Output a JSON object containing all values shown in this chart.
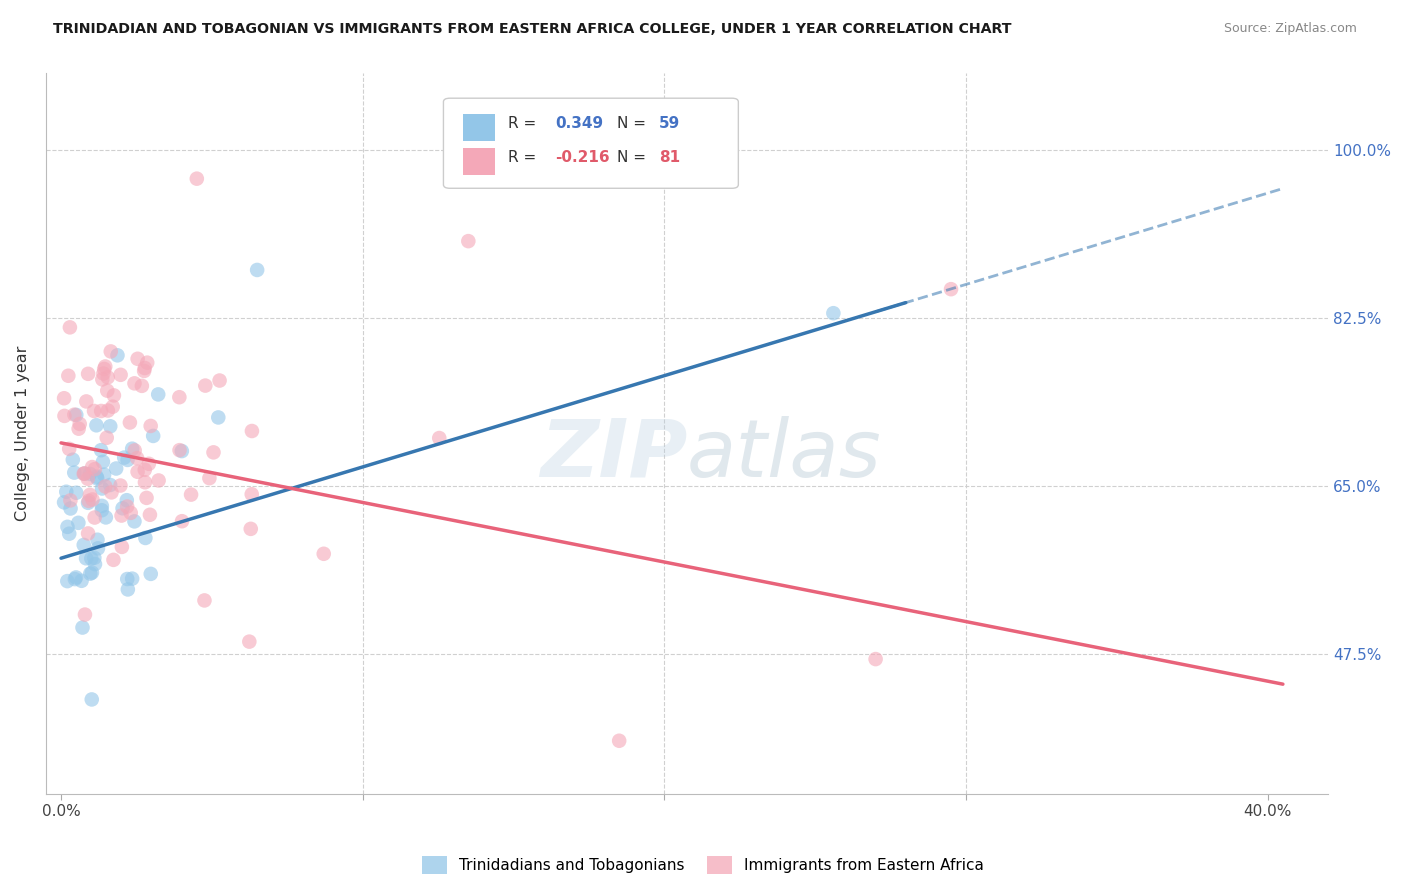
{
  "title": "TRINIDADIAN AND TOBAGONIAN VS IMMIGRANTS FROM EASTERN AFRICA COLLEGE, UNDER 1 YEAR CORRELATION CHART",
  "source": "Source: ZipAtlas.com",
  "ylabel": "College, Under 1 year",
  "ytick_vals": [
    0.475,
    0.65,
    0.825,
    1.0
  ],
  "ytick_labels": [
    "47.5%",
    "65.0%",
    "82.5%",
    "100.0%"
  ],
  "xlim": [
    -0.005,
    0.42
  ],
  "ylim": [
    0.33,
    1.08
  ],
  "R_blue": 0.349,
  "N_blue": 59,
  "R_pink": -0.216,
  "N_pink": 81,
  "blue_color": "#93c6e8",
  "pink_color": "#f4a8b8",
  "blue_line_color": "#3777b0",
  "pink_line_color": "#e8637a",
  "legend_label_blue": "Trinidadians and Tobagonians",
  "legend_label_pink": "Immigrants from Eastern Africa",
  "background_color": "#ffffff",
  "grid_color": "#d0d0d0",
  "watermark": "ZIPatlas",
  "blue_intercept": 0.575,
  "blue_slope": 0.95,
  "pink_intercept": 0.695,
  "pink_slope": -0.62
}
